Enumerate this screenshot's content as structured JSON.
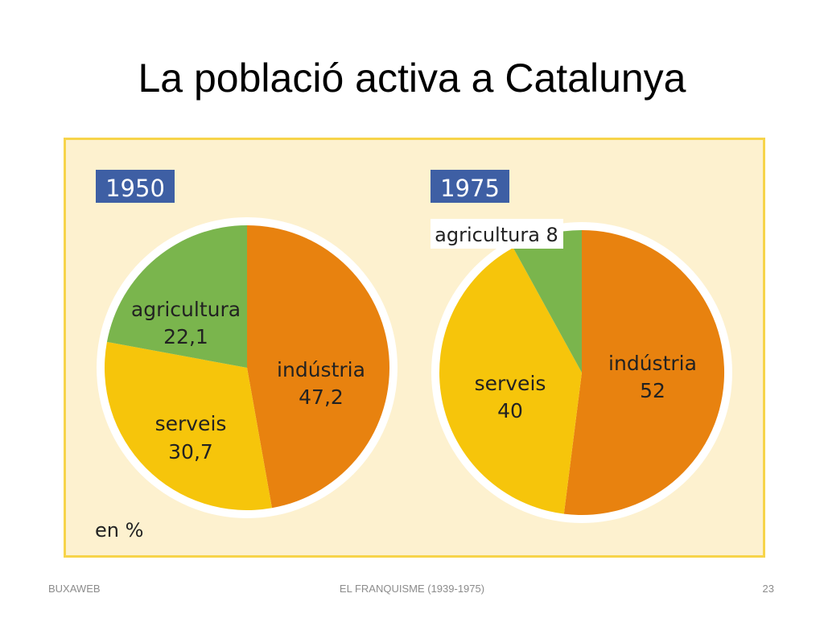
{
  "slide": {
    "title": "La població activa a Catalunya",
    "footer_left": "BUXAWEB",
    "footer_center": "EL FRANQUISME (1939-1975)",
    "footer_right": "23"
  },
  "colors": {
    "industria": "#e8820f",
    "serveis": "#f6c50b",
    "agricultura": "#7ab54d",
    "year_badge": "#3e5fa4",
    "panel": "#fdf1cf",
    "panel_border": "#f7d44a"
  },
  "chart_data": [
    {
      "type": "pie",
      "title": "1950",
      "unit_label": "en %",
      "slices": [
        {
          "name": "indústria",
          "label": "indústria",
          "value": 47.2,
          "value_label": "47,2",
          "color": "#e8820f"
        },
        {
          "name": "serveis",
          "label": "serveis",
          "value": 30.7,
          "value_label": "30,7",
          "color": "#f6c50b"
        },
        {
          "name": "agricultura",
          "label": "agricultura",
          "value": 22.1,
          "value_label": "22,1",
          "color": "#7ab54d"
        }
      ]
    },
    {
      "type": "pie",
      "title": "1975",
      "slices": [
        {
          "name": "indústria",
          "label": "indústria",
          "value": 52,
          "value_label": "52",
          "color": "#e8820f"
        },
        {
          "name": "serveis",
          "label": "serveis",
          "value": 40,
          "value_label": "40",
          "color": "#f6c50b"
        },
        {
          "name": "agricultura",
          "label": "agricultura 8",
          "value": 8,
          "value_label": "",
          "color": "#7ab54d"
        }
      ]
    }
  ]
}
